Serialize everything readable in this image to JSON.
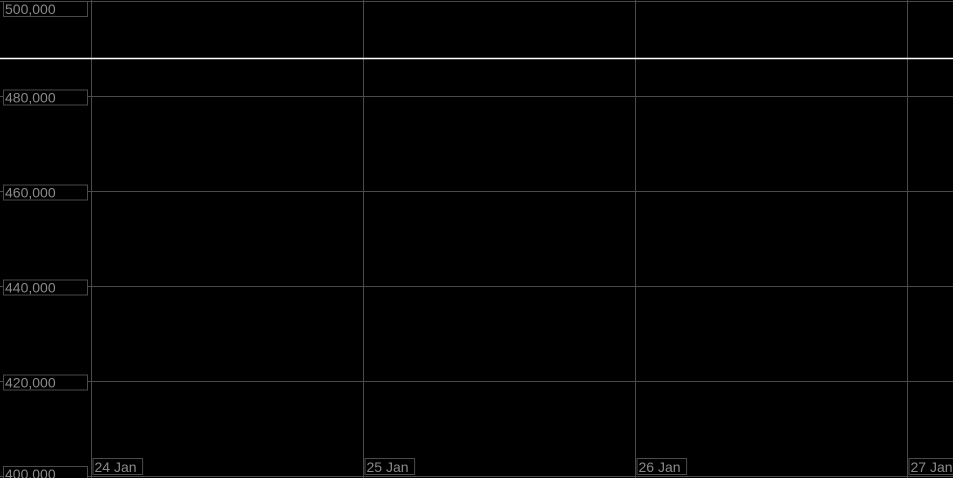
{
  "chart_data": {
    "type": "line",
    "title": "",
    "xlabel": "",
    "ylabel": "",
    "ylim": [
      400000,
      500000
    ],
    "xlim": [
      "24 Jan",
      "27 Jan+"
    ],
    "y_ticks": [
      400000,
      420000,
      440000,
      460000,
      480000,
      500000
    ],
    "y_tick_labels": [
      "400,000",
      "420,000",
      "440,000",
      "460,000",
      "480,000",
      "500,000"
    ],
    "x_ticks": [
      "24 Jan",
      "25 Jan",
      "26 Jan",
      "27 Jan"
    ],
    "grid": true,
    "series": [
      {
        "x": [
          "24 Jan",
          "27 Jan"
        ],
        "values": [
          488000,
          488000
        ],
        "color": "#ffffff"
      }
    ],
    "colors": {
      "background": "#000000",
      "grid": "#4a4a4a",
      "tick_text": "#8a8a8a",
      "line": "#ffffff"
    }
  }
}
